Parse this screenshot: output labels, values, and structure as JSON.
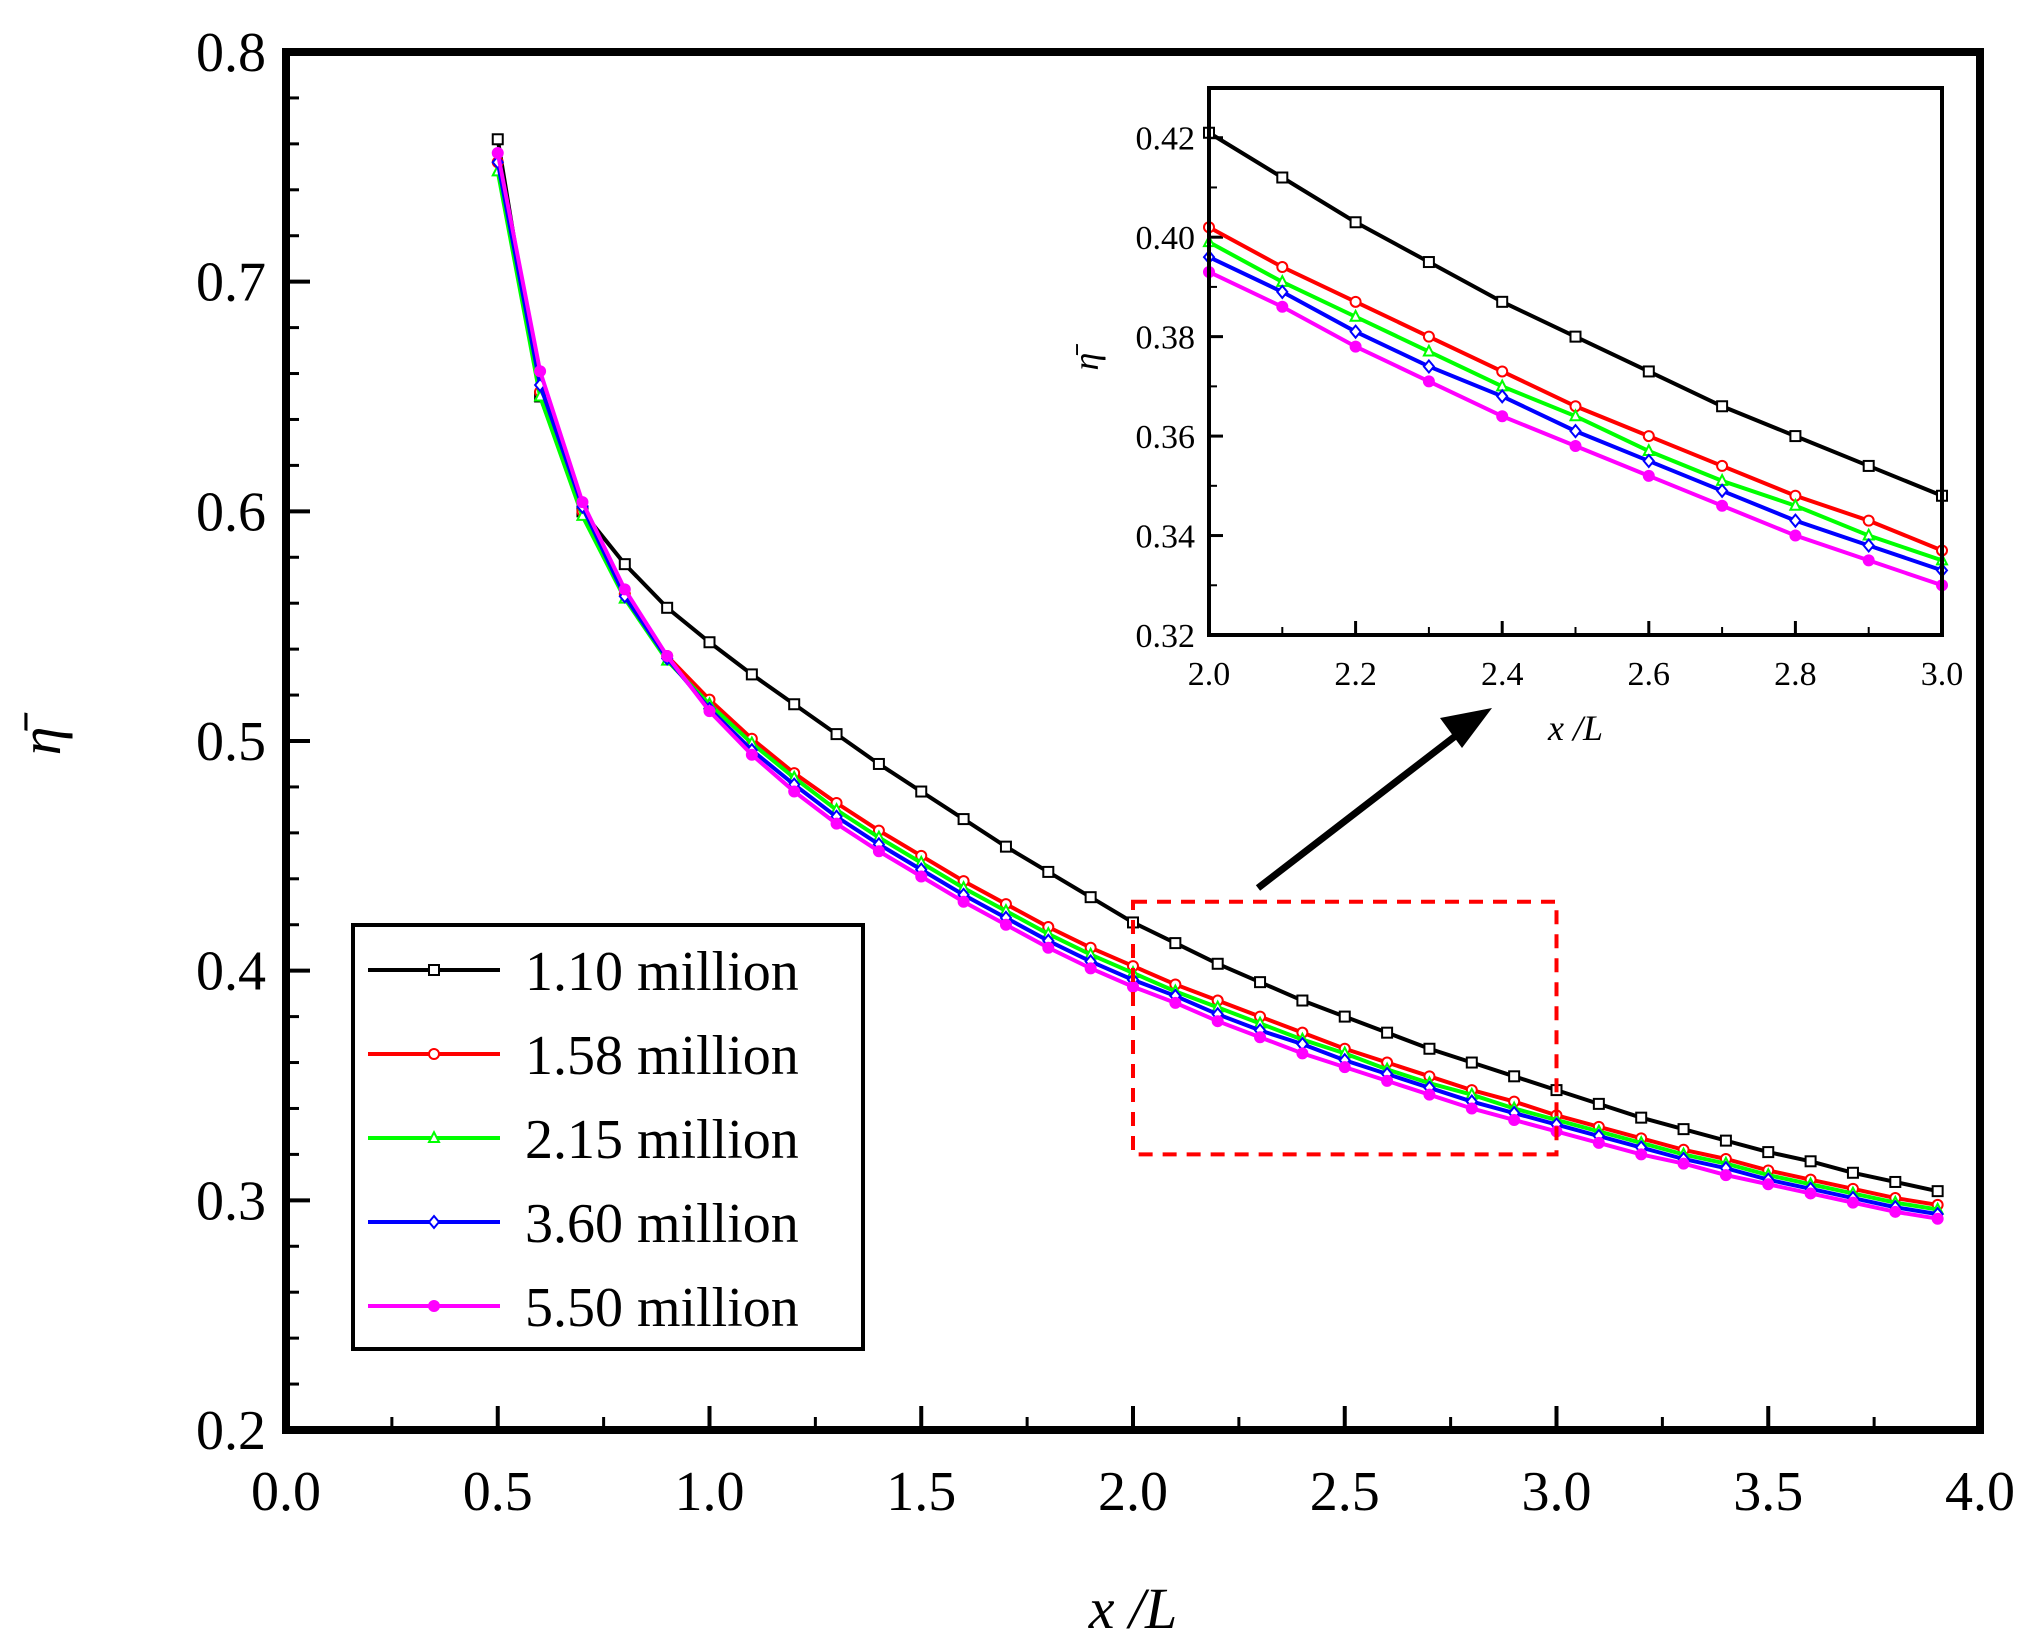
{
  "chart_data": {
    "type": "line",
    "xlabel": "x /L",
    "ylabel": "η̄",
    "xlim": [
      0.0,
      4.0
    ],
    "ylim": [
      0.2,
      0.8
    ],
    "x_ticks": [
      "0.0",
      "0.5",
      "1.0",
      "1.5",
      "2.0",
      "2.5",
      "3.0",
      "3.5",
      "4.0"
    ],
    "y_ticks": [
      "0.2",
      "0.3",
      "0.4",
      "0.5",
      "0.6",
      "0.7",
      "0.8"
    ],
    "legend_position": "bottom-left",
    "zoom_box": {
      "x_range": [
        2.0,
        3.0
      ],
      "y_range": [
        0.32,
        0.43
      ],
      "color": "#ff0000"
    },
    "series": [
      {
        "name": "1.10 million",
        "color": "#000000",
        "marker": "square",
        "x": [
          0.5,
          0.6,
          0.7,
          0.8,
          0.9,
          1.0,
          1.1,
          1.2,
          1.3,
          1.4,
          1.5,
          1.6,
          1.7,
          1.8,
          1.9,
          2.0,
          2.1,
          2.2,
          2.3,
          2.4,
          2.5,
          2.6,
          2.7,
          2.8,
          2.9,
          3.0,
          3.1,
          3.2,
          3.3,
          3.4,
          3.5,
          3.6,
          3.7,
          3.8,
          3.9
        ],
        "values": [
          0.762,
          0.65,
          0.6,
          0.577,
          0.558,
          0.543,
          0.529,
          0.516,
          0.503,
          0.49,
          0.478,
          0.466,
          0.454,
          0.443,
          0.432,
          0.421,
          0.412,
          0.403,
          0.395,
          0.387,
          0.38,
          0.373,
          0.366,
          0.36,
          0.354,
          0.348,
          0.342,
          0.336,
          0.331,
          0.326,
          0.321,
          0.317,
          0.312,
          0.308,
          0.304
        ]
      },
      {
        "name": "1.58 million",
        "color": "#ff0000",
        "marker": "circle",
        "x": [
          0.5,
          0.6,
          0.7,
          0.8,
          0.9,
          1.0,
          1.1,
          1.2,
          1.3,
          1.4,
          1.5,
          1.6,
          1.7,
          1.8,
          1.9,
          2.0,
          2.1,
          2.2,
          2.3,
          2.4,
          2.5,
          2.6,
          2.7,
          2.8,
          2.9,
          3.0,
          3.1,
          3.2,
          3.3,
          3.4,
          3.5,
          3.6,
          3.7,
          3.8,
          3.9
        ],
        "values": [
          0.752,
          0.652,
          0.6,
          0.564,
          0.537,
          0.518,
          0.501,
          0.486,
          0.473,
          0.461,
          0.45,
          0.439,
          0.429,
          0.419,
          0.41,
          0.402,
          0.394,
          0.387,
          0.38,
          0.373,
          0.366,
          0.36,
          0.354,
          0.348,
          0.343,
          0.337,
          0.332,
          0.327,
          0.322,
          0.318,
          0.313,
          0.309,
          0.305,
          0.301,
          0.298
        ]
      },
      {
        "name": "2.15 million",
        "color": "#00ff00",
        "marker": "triangle",
        "x": [
          0.5,
          0.6,
          0.7,
          0.8,
          0.9,
          1.0,
          1.1,
          1.2,
          1.3,
          1.4,
          1.5,
          1.6,
          1.7,
          1.8,
          1.9,
          2.0,
          2.1,
          2.2,
          2.3,
          2.4,
          2.5,
          2.6,
          2.7,
          2.8,
          2.9,
          3.0,
          3.1,
          3.2,
          3.3,
          3.4,
          3.5,
          3.6,
          3.7,
          3.8,
          3.9
        ],
        "values": [
          0.748,
          0.65,
          0.598,
          0.562,
          0.535,
          0.516,
          0.499,
          0.484,
          0.47,
          0.458,
          0.447,
          0.436,
          0.426,
          0.416,
          0.407,
          0.399,
          0.391,
          0.384,
          0.377,
          0.37,
          0.364,
          0.357,
          0.351,
          0.346,
          0.34,
          0.335,
          0.33,
          0.325,
          0.32,
          0.316,
          0.311,
          0.307,
          0.303,
          0.299,
          0.296
        ]
      },
      {
        "name": "3.60 million",
        "color": "#0000ff",
        "marker": "diamond",
        "x": [
          0.5,
          0.6,
          0.7,
          0.8,
          0.9,
          1.0,
          1.1,
          1.2,
          1.3,
          1.4,
          1.5,
          1.6,
          1.7,
          1.8,
          1.9,
          2.0,
          2.1,
          2.2,
          2.3,
          2.4,
          2.5,
          2.6,
          2.7,
          2.8,
          2.9,
          3.0,
          3.1,
          3.2,
          3.3,
          3.4,
          3.5,
          3.6,
          3.7,
          3.8,
          3.9
        ],
        "values": [
          0.752,
          0.655,
          0.602,
          0.563,
          0.536,
          0.514,
          0.496,
          0.481,
          0.467,
          0.455,
          0.444,
          0.433,
          0.423,
          0.413,
          0.404,
          0.396,
          0.389,
          0.381,
          0.374,
          0.368,
          0.361,
          0.355,
          0.349,
          0.343,
          0.338,
          0.333,
          0.328,
          0.323,
          0.318,
          0.314,
          0.309,
          0.305,
          0.301,
          0.297,
          0.294
        ]
      },
      {
        "name": "5.50 million",
        "color": "#ff00ff",
        "marker": "filled-circle",
        "x": [
          0.5,
          0.6,
          0.7,
          0.8,
          0.9,
          1.0,
          1.1,
          1.2,
          1.3,
          1.4,
          1.5,
          1.6,
          1.7,
          1.8,
          1.9,
          2.0,
          2.1,
          2.2,
          2.3,
          2.4,
          2.5,
          2.6,
          2.7,
          2.8,
          2.9,
          3.0,
          3.1,
          3.2,
          3.3,
          3.4,
          3.5,
          3.6,
          3.7,
          3.8,
          3.9
        ],
        "values": [
          0.756,
          0.661,
          0.604,
          0.566,
          0.537,
          0.513,
          0.494,
          0.478,
          0.464,
          0.452,
          0.441,
          0.43,
          0.42,
          0.41,
          0.401,
          0.393,
          0.386,
          0.378,
          0.371,
          0.364,
          0.358,
          0.352,
          0.346,
          0.34,
          0.335,
          0.33,
          0.325,
          0.32,
          0.316,
          0.311,
          0.307,
          0.303,
          0.299,
          0.295,
          0.292
        ]
      }
    ],
    "inset": {
      "xlim": [
        2.0,
        3.0
      ],
      "ylim": [
        0.32,
        0.43
      ],
      "xlabel": "x /L",
      "ylabel": "η̄",
      "x_ticks": [
        "2.0",
        "2.2",
        "2.4",
        "2.6",
        "2.8",
        "3.0"
      ],
      "y_ticks": [
        "0.32",
        "0.34",
        "0.36",
        "0.38",
        "0.40",
        "0.42"
      ]
    }
  }
}
